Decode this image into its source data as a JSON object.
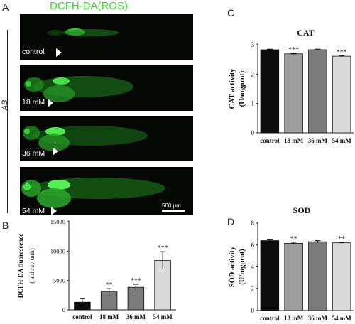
{
  "figure": {
    "panel_letters": {
      "a": "A",
      "b": "B",
      "c": "C",
      "d": "D"
    },
    "image_title": "DCFH-DA(ROS)",
    "side_label": "AB",
    "scale_bar": "500 μm",
    "fish_labels": [
      "control",
      "18 mM",
      "36 mM",
      "54 mM"
    ]
  },
  "chart_data": [
    {
      "id": "B",
      "type": "bar",
      "title": "",
      "categories": [
        "control",
        "18 mM",
        "36 mM",
        "54 mM"
      ],
      "values": [
        1300,
        3150,
        3850,
        8400
      ],
      "errors": [
        600,
        500,
        500,
        1500
      ],
      "significance": [
        "",
        "**",
        "***",
        "***"
      ],
      "ylabel": "DCFH-DA fluorescence",
      "ylabel2": "( abitray unit)",
      "ylim": [
        0,
        15000
      ],
      "yticks": [
        0,
        5000,
        10000,
        15000
      ],
      "ytick_labels": [
        "0",
        "5000",
        "10000",
        "15000"
      ],
      "colors": [
        "#0d0d0d",
        "#7b7b7b",
        "#7b7b7b",
        "#d9d9d9"
      ]
    },
    {
      "id": "C",
      "type": "bar",
      "title": "CAT",
      "categories": [
        "control",
        "18 mM",
        "36 mM",
        "54 mM"
      ],
      "values": [
        2.83,
        2.69,
        2.83,
        2.61
      ],
      "errors": [
        0.02,
        0.02,
        0.02,
        0.02
      ],
      "significance": [
        "",
        "***",
        "",
        "***"
      ],
      "ylabel": "CAT activity",
      "ylabel2": "(U/mgprot)",
      "ylim": [
        0,
        3
      ],
      "yticks": [
        0,
        1,
        2,
        3
      ],
      "ytick_labels": [
        "0",
        "1",
        "2",
        "3"
      ],
      "colors": [
        "#0d0d0d",
        "#9e9e9e",
        "#7b7b7b",
        "#d9d9d9"
      ]
    },
    {
      "id": "D",
      "type": "bar",
      "title": "SOD",
      "categories": [
        "control",
        "18 mM",
        "36 mM",
        "54 mM"
      ],
      "values": [
        6.4,
        6.15,
        6.3,
        6.2
      ],
      "errors": [
        0.08,
        0.1,
        0.1,
        0.05
      ],
      "significance": [
        "",
        "**",
        "",
        "**"
      ],
      "ylabel": "SOD activity",
      "ylabel2": "(U/mgprot)",
      "ylim": [
        0,
        8
      ],
      "yticks": [
        0,
        2,
        4,
        6,
        8
      ],
      "ytick_labels": [
        "0",
        "2",
        "4",
        "6",
        "8"
      ],
      "colors": [
        "#0d0d0d",
        "#9e9e9e",
        "#7b7b7b",
        "#d9d9d9"
      ]
    }
  ]
}
